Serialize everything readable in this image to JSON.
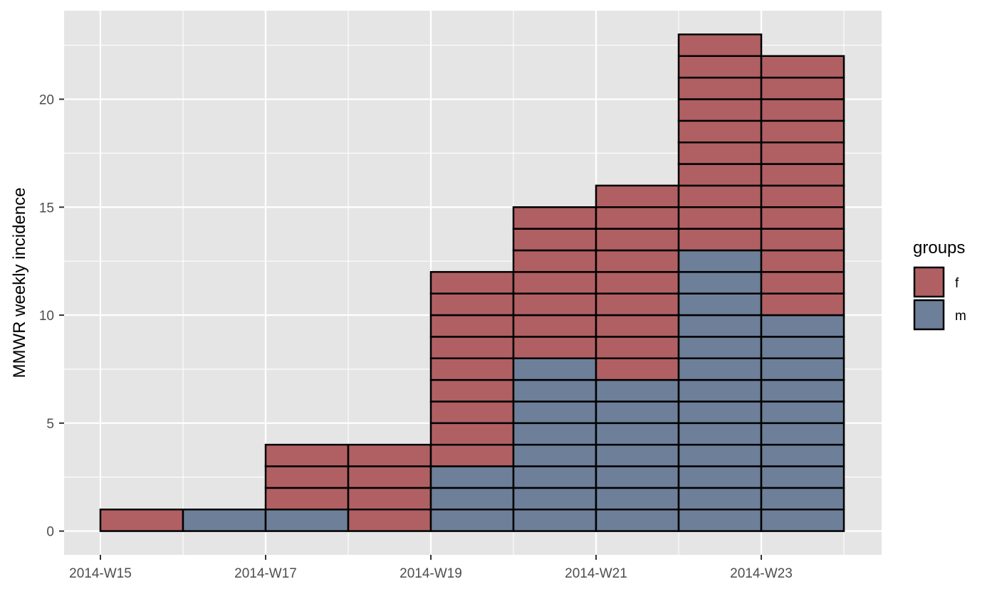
{
  "chart_data": {
    "type": "bar",
    "stacked": true,
    "x_categories": [
      "2014-W15",
      "2014-W16",
      "2014-W17",
      "2014-W18",
      "2014-W19",
      "2014-W20",
      "2014-W21",
      "2014-W22",
      "2014-W23"
    ],
    "x_tick_labels": [
      "2014-W15",
      "2014-W17",
      "2014-W19",
      "2014-W21",
      "2014-W23"
    ],
    "ylabel": "MMWR weekly incidence",
    "xlabel": "",
    "y_ticks": [
      0,
      5,
      10,
      15,
      20
    ],
    "ylim": [
      -1.1,
      24.1
    ],
    "series": [
      {
        "name": "m",
        "color": "#6e7f99",
        "values": [
          0,
          1,
          1,
          0,
          3,
          8,
          7,
          13,
          10
        ]
      },
      {
        "name": "f",
        "color": "#b06063",
        "values": [
          1,
          0,
          3,
          4,
          9,
          7,
          9,
          10,
          12
        ]
      }
    ],
    "stack_order": [
      "m",
      "f"
    ],
    "unit_box_outline": "#000000",
    "legend": {
      "title": "groups",
      "placement": "right",
      "items": [
        {
          "label": "f",
          "color": "#b06063"
        },
        {
          "label": "m",
          "color": "#6e7f99"
        }
      ]
    },
    "panel_background": "#e5e5e5",
    "grid": true,
    "grid_color": "#ffffff"
  }
}
